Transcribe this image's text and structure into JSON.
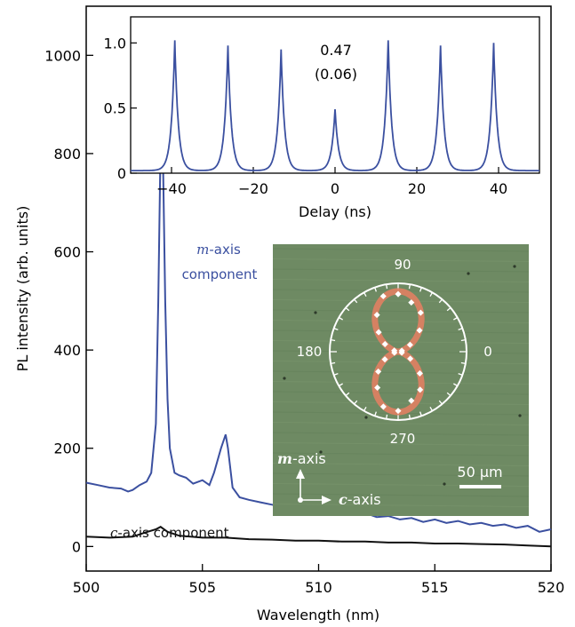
{
  "colors": {
    "blue": "#3b50a0",
    "black": "#111111",
    "micrograph": "#6e8a63",
    "fit": "#e07f62",
    "white": "#ffffff"
  },
  "chart_data": [
    {
      "type": "line",
      "role": "main",
      "xlabel": "Wavelength (nm)",
      "ylabel": "PL intensity (arb. units)",
      "xlim": [
        500,
        520
      ],
      "ylim": [
        -50,
        1100
      ],
      "xticks": [
        500,
        505,
        510,
        515,
        520
      ],
      "yticks": [
        0,
        200,
        400,
        600,
        800,
        1000
      ],
      "grid": false,
      "series": [
        {
          "name": "m-axis component",
          "color": "#3b50a0",
          "label_prefix": "m",
          "label_axis": "-axis",
          "label_line2": "component",
          "x": [
            500,
            500.5,
            501,
            501.5,
            501.8,
            502,
            502.3,
            502.6,
            502.8,
            503,
            503.1,
            503.2,
            503.25,
            503.3,
            503.4,
            503.5,
            503.6,
            503.8,
            504,
            504.3,
            504.6,
            505,
            505.3,
            505.5,
            505.8,
            506,
            506.1,
            506.3,
            506.6,
            507,
            507.5,
            508,
            508.5,
            509,
            509.5,
            510,
            510.5,
            511,
            511.5,
            512,
            512.5,
            513,
            513.5,
            514,
            514.5,
            515,
            515.5,
            516,
            516.5,
            517,
            517.5,
            518,
            518.5,
            519,
            519.5,
            520
          ],
          "y": [
            130,
            125,
            120,
            118,
            112,
            115,
            125,
            132,
            150,
            250,
            500,
            820,
            952,
            800,
            500,
            300,
            200,
            150,
            145,
            140,
            128,
            135,
            125,
            150,
            200,
            228,
            200,
            120,
            100,
            95,
            90,
            85,
            80,
            85,
            75,
            80,
            70,
            72,
            65,
            68,
            60,
            62,
            55,
            58,
            50,
            55,
            48,
            52,
            45,
            48,
            42,
            45,
            38,
            42,
            30,
            35
          ]
        },
        {
          "name": "c-axis component",
          "color": "#111111",
          "label_prefix": "c",
          "label_axis": "-axis component",
          "x": [
            500,
            501,
            502,
            502.5,
            503,
            503.2,
            503.5,
            504,
            505,
            506,
            507,
            508,
            509,
            510,
            511,
            512,
            513,
            514,
            515,
            516,
            517,
            518,
            519,
            520
          ],
          "y": [
            20,
            18,
            20,
            28,
            35,
            40,
            30,
            22,
            18,
            18,
            15,
            14,
            12,
            12,
            10,
            10,
            8,
            8,
            6,
            6,
            5,
            4,
            2,
            0
          ]
        }
      ]
    },
    {
      "type": "line",
      "role": "inset-g2",
      "xlabel": "Delay (ns)",
      "ylabel": "",
      "xlim": [
        -50,
        50
      ],
      "ylim": [
        0,
        1.2
      ],
      "xticks": [
        -40,
        -20,
        0,
        20,
        40
      ],
      "yticks": [
        0,
        0.5,
        1.0
      ],
      "ytick_labels": [
        "0",
        "0.5",
        "1.0"
      ],
      "annotation_value": "0.47",
      "annotation_error": "(0.06)",
      "peaks": {
        "x": [
          -39.2,
          -26.2,
          -13.2,
          0,
          13,
          25.8,
          38.8
        ],
        "height": [
          1.0,
          0.96,
          0.93,
          0.47,
          1.0,
          0.96,
          0.98
        ]
      },
      "baseline": 0.02,
      "color": "#3b50a0"
    },
    {
      "type": "polar",
      "role": "inset-micrograph",
      "angle_labels": [
        "90",
        "0",
        "270",
        "180"
      ],
      "scale_bar_label": "50 µm",
      "axis_labels": {
        "m_prefix": "m",
        "m_suffix": "-axis",
        "c_prefix": "c",
        "c_suffix": "-axis"
      },
      "fit_color": "#e07f62"
    }
  ]
}
